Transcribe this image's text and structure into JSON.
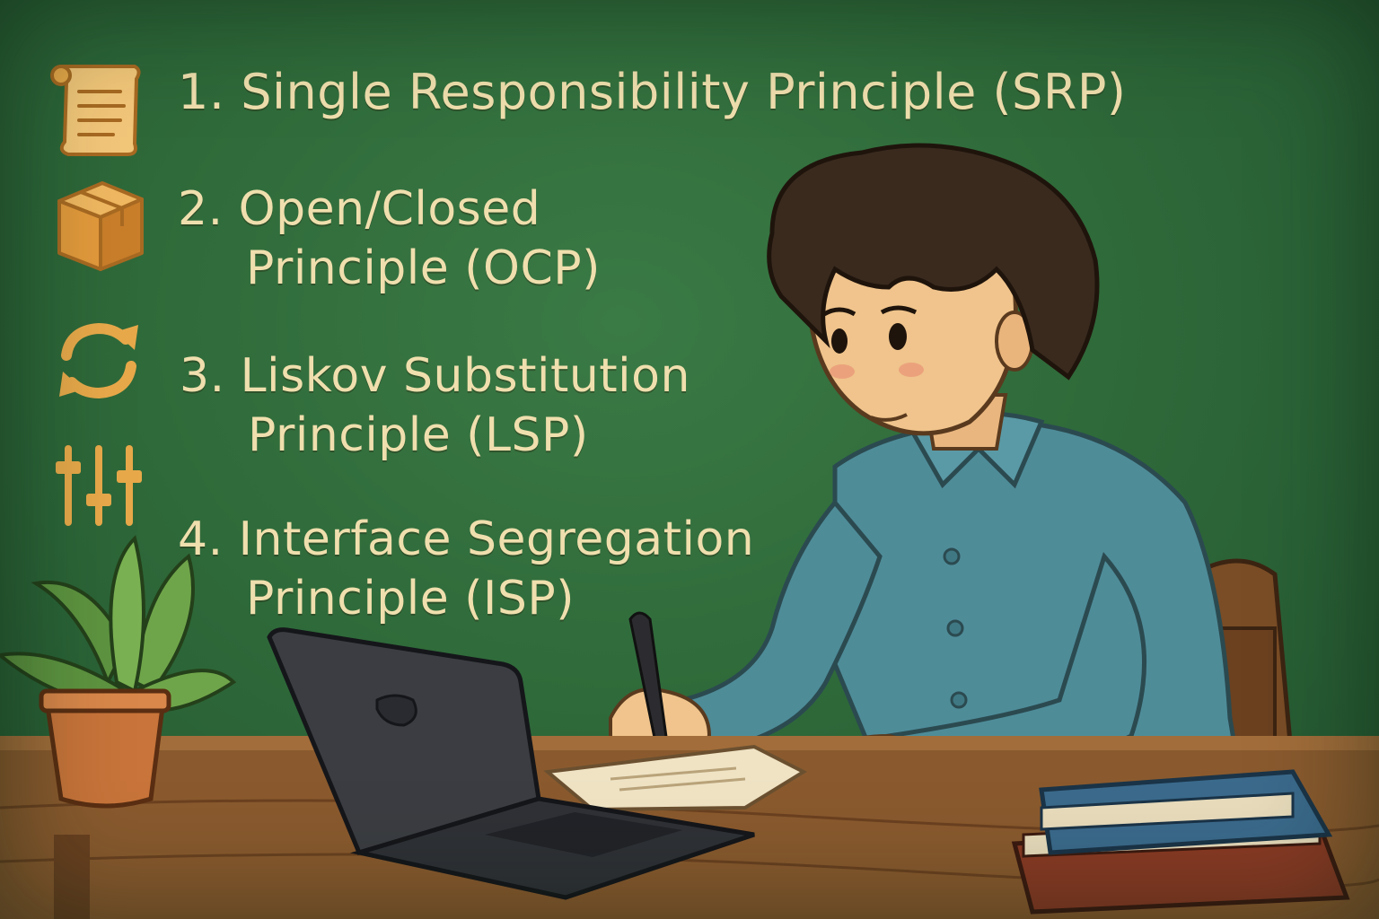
{
  "principles": [
    {
      "number": "1.",
      "title": "Single Responsibility Principle (SRP)",
      "icon": "scroll-icon"
    },
    {
      "number": "2.",
      "title_line1": "Open/Closed",
      "title_line2": "Principle (OCP)",
      "icon": "box-icon"
    },
    {
      "number": "3.",
      "title_line1": "Liskov Substitution",
      "title_line2": "Principle (LSP)",
      "icon": "refresh-arrows-icon"
    },
    {
      "number": "4.",
      "title_line1": "Interface Segregation",
      "title_line2": "Principle (ISP)",
      "icon": "sliders-icon"
    }
  ],
  "colors": {
    "chalkboard": "#2f6a3a",
    "text": "#f0dfae",
    "icon": "#e8a94a",
    "desk": "#8a5a2e",
    "shirt": "#4e8c98",
    "hair": "#3a2a1e"
  }
}
